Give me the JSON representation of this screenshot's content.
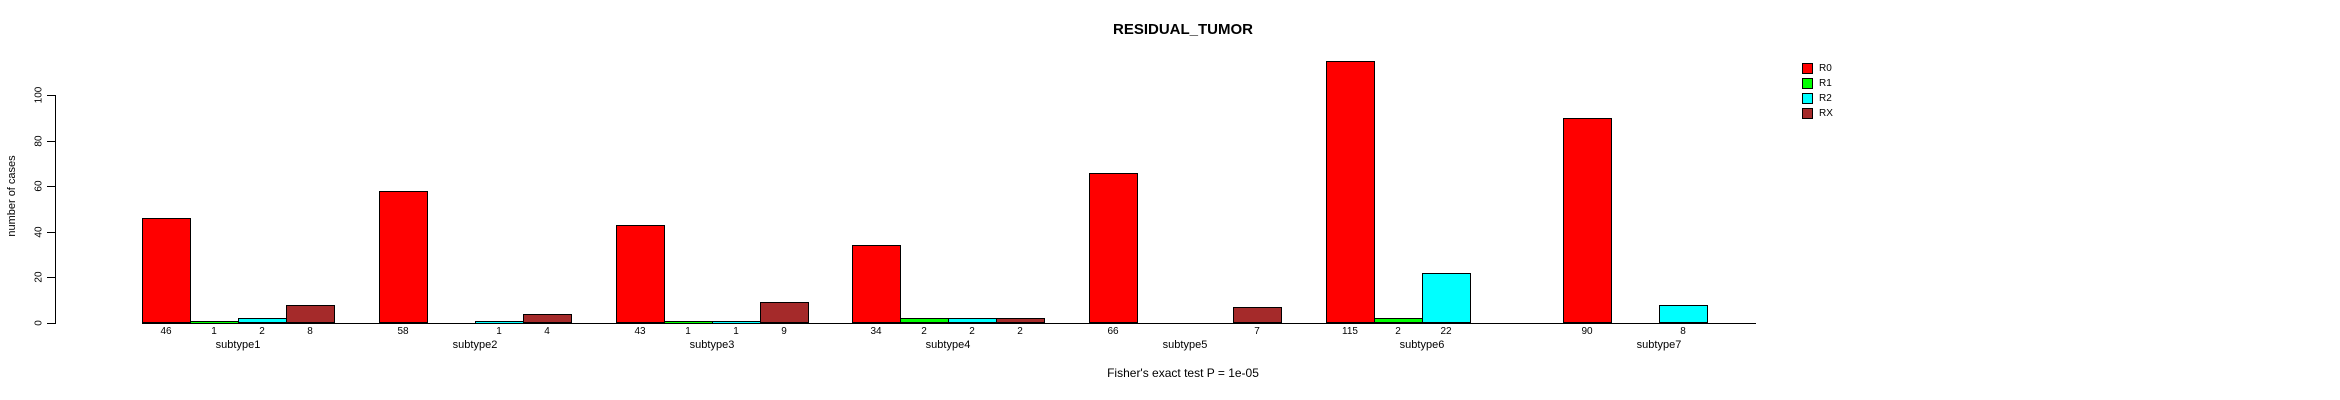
{
  "page": {
    "background": "#FFFFFF",
    "text_color": "#000000"
  },
  "chart_data": {
    "type": "bar",
    "title": "RESIDUAL_TUMOR",
    "ylabel": "number of cases",
    "xlabel": "",
    "footnote": "Fisher's exact test P = 1e-05",
    "ylim": [
      0,
      100
    ],
    "yticks": [
      0,
      20,
      40,
      60,
      80,
      100
    ],
    "grid": false,
    "bar_layout": "grouped",
    "value_labels_visible": true,
    "categories": [
      "subtype1",
      "subtype2",
      "subtype3",
      "subtype4",
      "subtype5",
      "subtype6",
      "subtype7"
    ],
    "series": [
      {
        "name": "R0",
        "color": "#FF0000",
        "values": [
          46,
          58,
          43,
          34,
          66,
          115,
          90
        ]
      },
      {
        "name": "R1",
        "color": "#00FF00",
        "values": [
          1,
          0,
          1,
          2,
          0,
          2,
          0
        ]
      },
      {
        "name": "R2",
        "color": "#00FFFF",
        "values": [
          2,
          1,
          1,
          2,
          0,
          22,
          8
        ]
      },
      {
        "name": "RX",
        "color": "#A52A2A",
        "values": [
          8,
          4,
          9,
          2,
          7,
          0,
          0
        ]
      }
    ],
    "legend": {
      "position": "right",
      "entries": [
        "R0",
        "R1",
        "R2",
        "RX"
      ]
    }
  }
}
